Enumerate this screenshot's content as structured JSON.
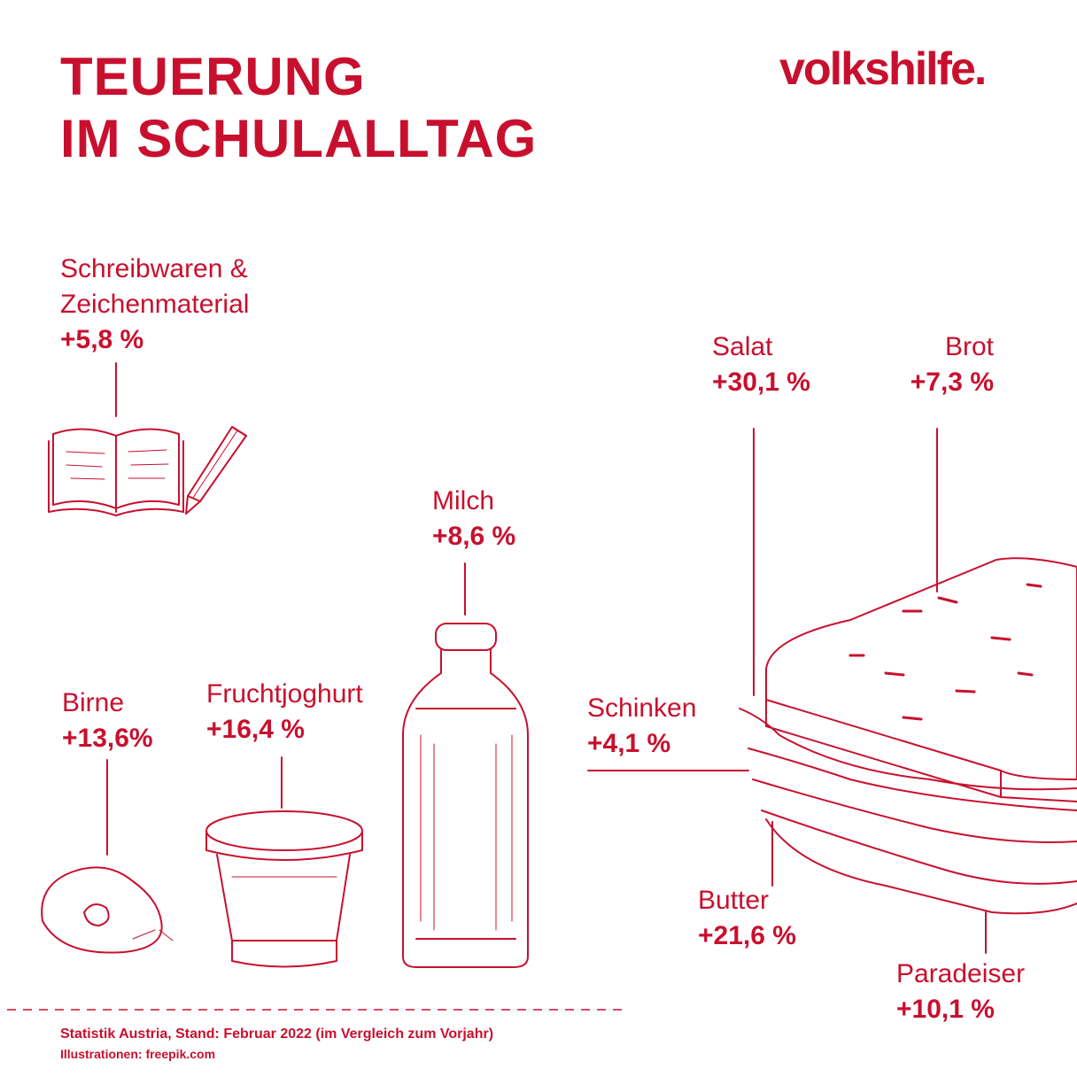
{
  "title": {
    "line1": "TEUERUNG",
    "line2": "IM SCHULALLTAG"
  },
  "logo": "volkshilfe.",
  "items": {
    "schreibwaren": {
      "name_line1": "Schreibwaren &",
      "name_line2": "Zeichenmaterial",
      "value": "+5,8 %"
    },
    "salat": {
      "name": "Salat",
      "value": "+30,1 %"
    },
    "brot": {
      "name": "Brot",
      "value": "+7,3 %"
    },
    "milch": {
      "name": "Milch",
      "value": "+8,6 %"
    },
    "birne": {
      "name": "Birne",
      "value": "+13,6%"
    },
    "fruchtjoghurt": {
      "name": "Fruchtjoghurt",
      "value": "+16,4 %"
    },
    "schinken": {
      "name": "Schinken",
      "value": "+4,1 %"
    },
    "butter": {
      "name": "Butter",
      "value": "+21,6 %"
    },
    "paradeiser": {
      "name": "Paradeiser",
      "value": "+10,1 %"
    }
  },
  "footer": {
    "source": "Statistik Austria, Stand: Februar 2022 (im Vergleich zum Vorjahr)",
    "credits": "Illustrationen: freepik.com"
  },
  "colors": {
    "accent": "#c8102e",
    "background": "#ffffff"
  }
}
